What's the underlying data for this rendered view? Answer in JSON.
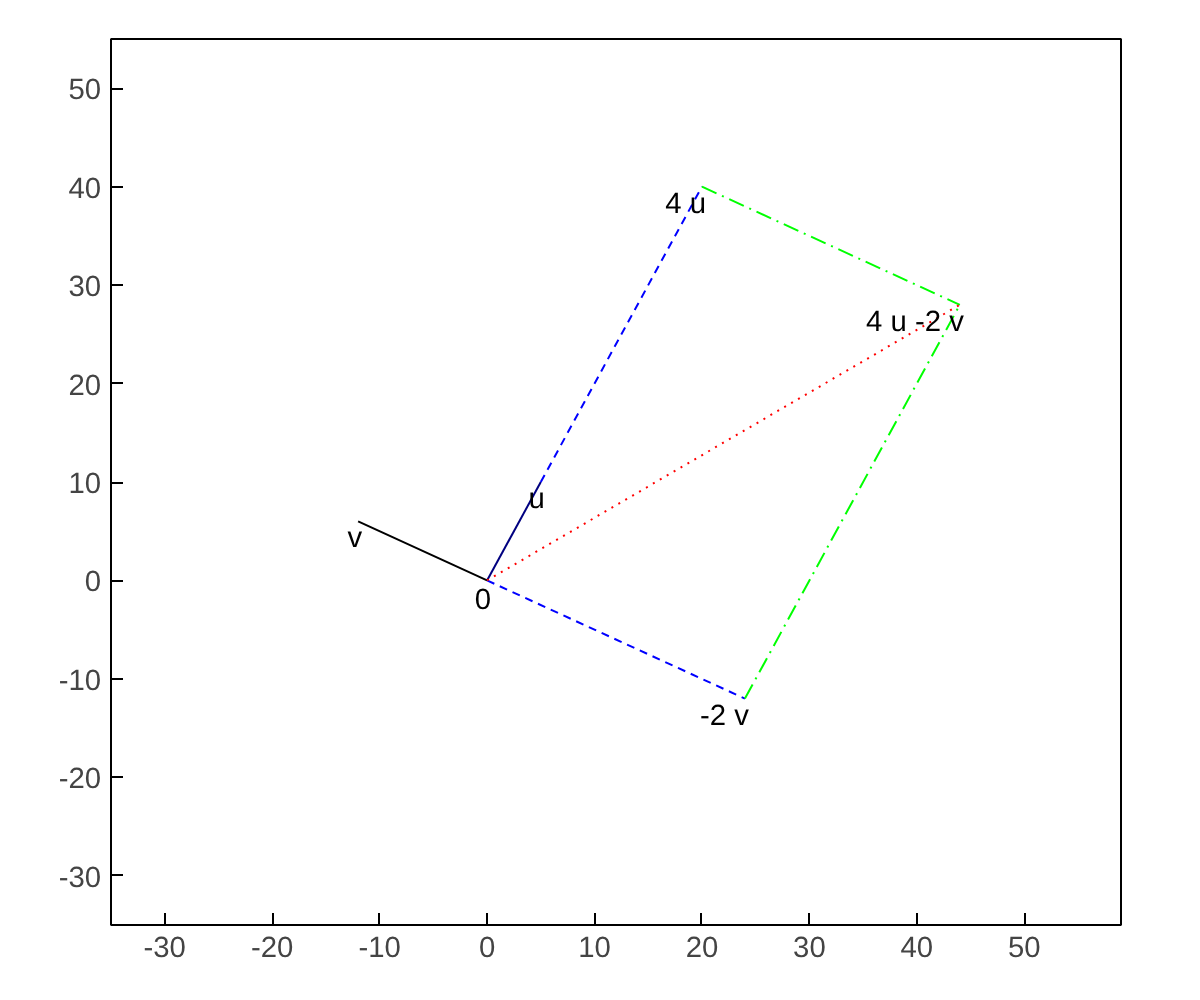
{
  "chart_data": {
    "type": "line",
    "xlim": [
      -35,
      59
    ],
    "ylim": [
      -35,
      55
    ],
    "xticks": [
      -30,
      -20,
      -10,
      0,
      10,
      20,
      30,
      40,
      50
    ],
    "yticks": [
      -30,
      -20,
      -10,
      0,
      10,
      20,
      30,
      40,
      50
    ],
    "grid": false,
    "series": [
      {
        "color": "#000080",
        "line_style": "solid",
        "x": [
          0,
          5
        ],
        "values": [
          0,
          10
        ]
      },
      {
        "color": "#000000",
        "line_style": "solid",
        "x": [
          0,
          -12
        ],
        "values": [
          0,
          6
        ]
      },
      {
        "color": "#0000ff",
        "line_style": "dashed",
        "x": [
          5,
          20
        ],
        "values": [
          10,
          40
        ]
      },
      {
        "color": "#0000ff",
        "line_style": "dashed",
        "x": [
          0,
          24
        ],
        "values": [
          0,
          -12
        ]
      },
      {
        "color": "#00ff00",
        "line_style": "dashdot",
        "x": [
          20,
          44
        ],
        "values": [
          40,
          28
        ]
      },
      {
        "color": "#00ff00",
        "line_style": "dashdot",
        "x": [
          24,
          44
        ],
        "values": [
          -12,
          28
        ]
      },
      {
        "color": "#ff0000",
        "line_style": "dotted",
        "x": [
          0,
          44
        ],
        "values": [
          0,
          28
        ]
      }
    ],
    "annotations": [
      {
        "text": "0",
        "x": 0,
        "y": 0
      },
      {
        "text": "u",
        "x": 5,
        "y": 10
      },
      {
        "text": "v",
        "x": -12,
        "y": 6
      },
      {
        "text": "4 u",
        "x": 20,
        "y": 40
      },
      {
        "text": "-2 v",
        "x": 24,
        "y": -12
      },
      {
        "text": "4 u -2 v",
        "x": 44,
        "y": 28
      }
    ]
  }
}
